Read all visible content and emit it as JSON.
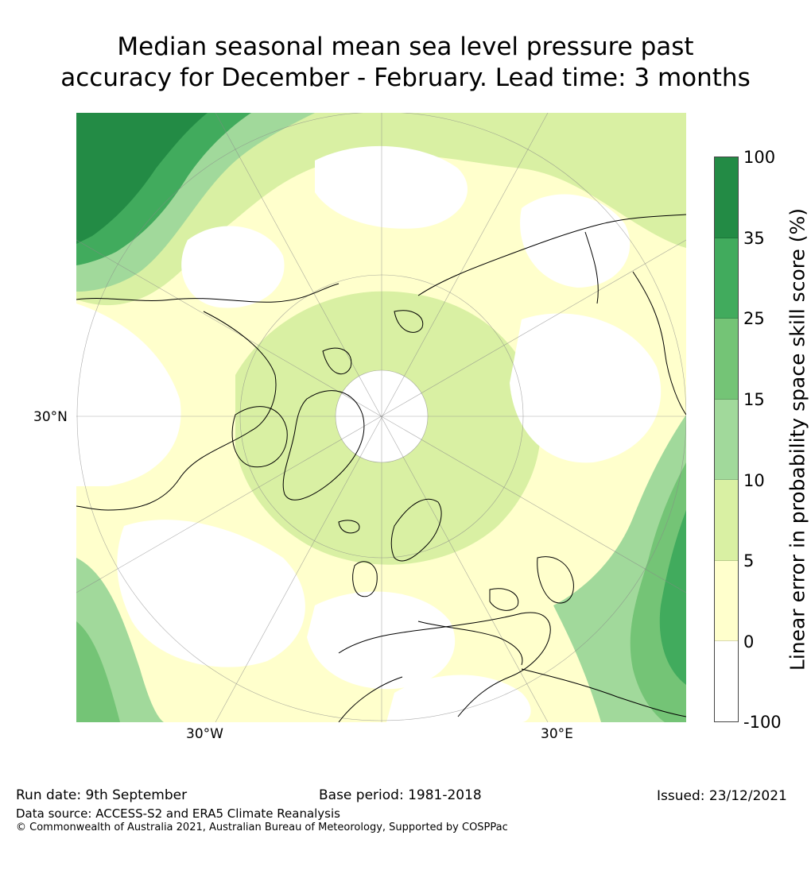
{
  "title": {
    "line1": "Median seasonal mean sea level pressure past",
    "line2": "accuracy for December - February. Lead time: 3 months"
  },
  "map": {
    "projection": "north-polar-stereographic",
    "lon_labels": [
      "30°W",
      "30°E"
    ],
    "lat_labels": [
      "30°N"
    ]
  },
  "colorbar": {
    "title": "Linear error in probability space skill score (%)",
    "ticks": [
      "100",
      "35",
      "25",
      "15",
      "10",
      "5",
      "0",
      "-100"
    ],
    "colors": [
      "#238b45",
      "#41ab5d",
      "#74c476",
      "#a1d99b",
      "#d9f0a3",
      "#ffffcc",
      "#ffffff"
    ]
  },
  "footer": {
    "run_date": "Run date: 9th September",
    "base_period": "Base period: 1981-2018",
    "issued": "Issued: 23/12/2021",
    "data_source": "Data source: ACCESS-S2 and ERA5 Climate Reanalysis",
    "copyright": "© Commonwealth of Australia 2021, Australian Bureau of Meteorology, Supported by COSPPac"
  }
}
